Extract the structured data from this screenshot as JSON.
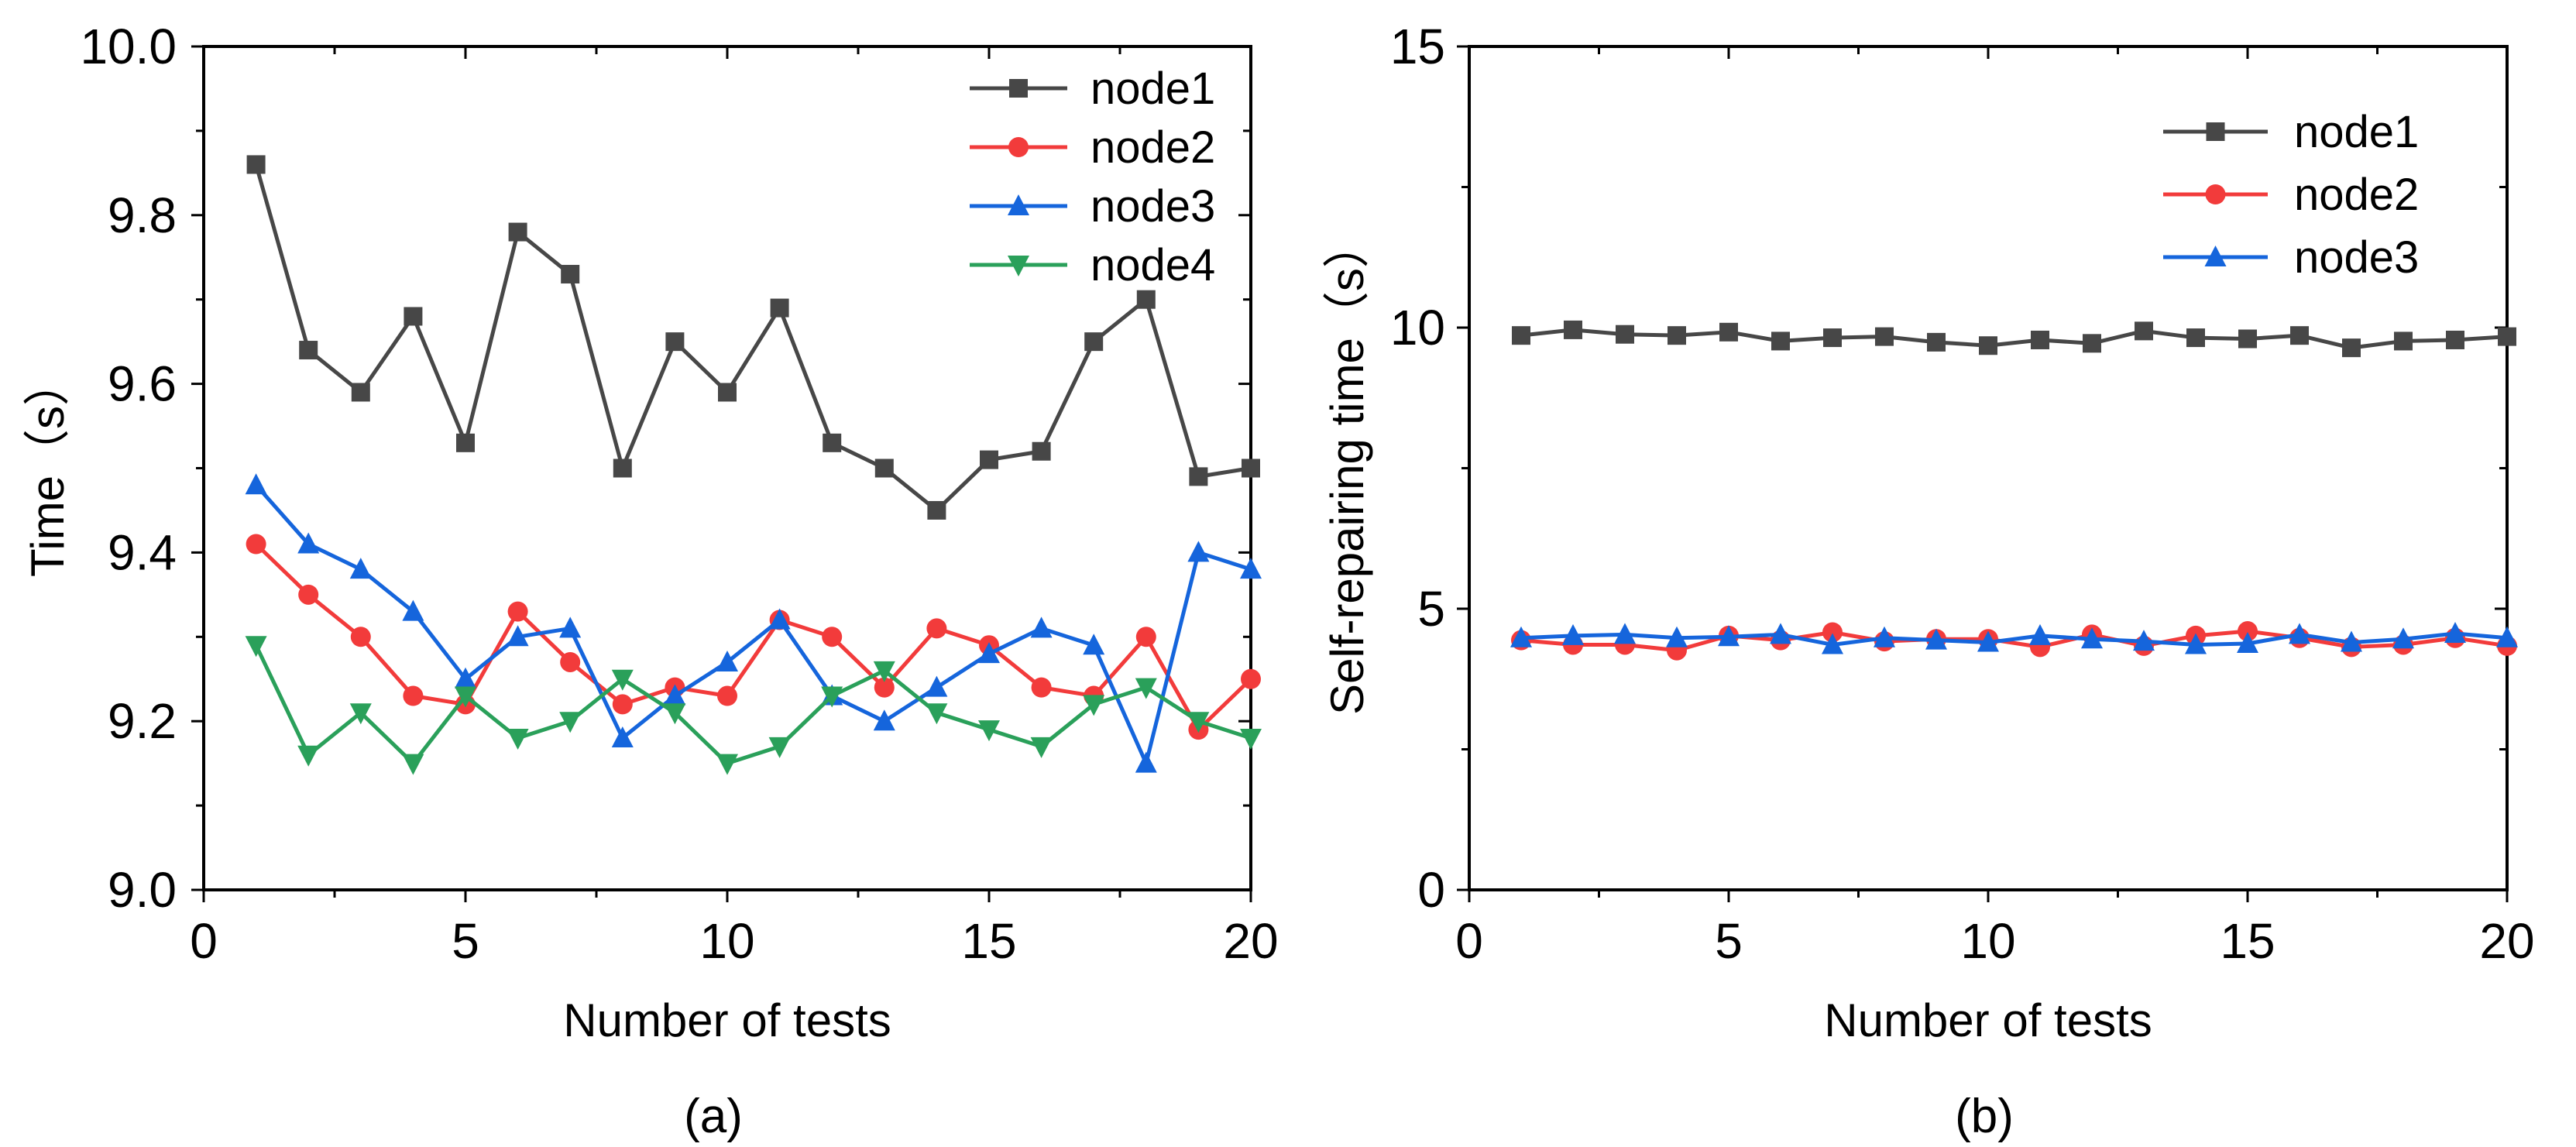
{
  "chart_data": [
    {
      "type": "line",
      "panel_label": "(a)",
      "xlabel": "Number of tests",
      "ylabel": "Time（s）",
      "xlim": [
        0,
        20
      ],
      "ylim": [
        9.0,
        10.0
      ],
      "xticks": [
        0,
        5,
        10,
        15,
        20
      ],
      "xtick_labels": [
        "0",
        "5",
        "10",
        "15",
        "20"
      ],
      "yticks": [
        9.0,
        9.2,
        9.4,
        9.6,
        9.8,
        10.0
      ],
      "ytick_labels": [
        "9.0",
        "9.2",
        "9.4",
        "9.6",
        "9.8",
        "10.0"
      ],
      "xminor": 2.5,
      "yminor": 0.1,
      "legend_position": "top-right",
      "x": [
        1,
        2,
        3,
        4,
        5,
        6,
        7,
        8,
        9,
        10,
        11,
        12,
        13,
        14,
        15,
        16,
        17,
        18,
        19,
        20
      ],
      "series": [
        {
          "name": "node1",
          "color": "#474747",
          "marker": "square",
          "values": [
            9.86,
            9.64,
            9.59,
            9.68,
            9.53,
            9.78,
            9.73,
            9.5,
            9.65,
            9.59,
            9.69,
            9.53,
            9.5,
            9.45,
            9.51,
            9.52,
            9.65,
            9.7,
            9.49,
            9.5
          ]
        },
        {
          "name": "node2",
          "color": "#f23b3b",
          "marker": "circle",
          "values": [
            9.41,
            9.35,
            9.3,
            9.23,
            9.22,
            9.33,
            9.27,
            9.22,
            9.24,
            9.23,
            9.32,
            9.3,
            9.24,
            9.31,
            9.29,
            9.24,
            9.23,
            9.3,
            9.19,
            9.25
          ]
        },
        {
          "name": "node3",
          "color": "#1565dc",
          "marker": "triangle-up",
          "values": [
            9.48,
            9.41,
            9.38,
            9.33,
            9.25,
            9.3,
            9.31,
            9.18,
            9.23,
            9.27,
            9.32,
            9.23,
            9.2,
            9.24,
            9.28,
            9.31,
            9.29,
            9.15,
            9.4,
            9.38
          ]
        },
        {
          "name": "node4",
          "color": "#2aa05a",
          "marker": "triangle-down",
          "values": [
            9.29,
            9.16,
            9.21,
            9.15,
            9.23,
            9.18,
            9.2,
            9.25,
            9.21,
            9.15,
            9.17,
            9.23,
            9.26,
            9.21,
            9.19,
            9.17,
            9.22,
            9.24,
            9.2,
            9.18
          ]
        }
      ]
    },
    {
      "type": "line",
      "panel_label": "(b)",
      "xlabel": "Number of tests",
      "ylabel": "Self-repairing time（s）",
      "xlim": [
        0,
        20
      ],
      "ylim": [
        0,
        15
      ],
      "xticks": [
        0,
        5,
        10,
        15,
        20
      ],
      "xtick_labels": [
        "0",
        "5",
        "10",
        "15",
        "20"
      ],
      "yticks": [
        0,
        5,
        10,
        15
      ],
      "ytick_labels": [
        "0",
        "5",
        "10",
        "15"
      ],
      "xminor": 2.5,
      "yminor": 2.5,
      "legend_position": "top-right",
      "x": [
        1,
        2,
        3,
        4,
        5,
        6,
        7,
        8,
        9,
        10,
        11,
        12,
        13,
        14,
        15,
        16,
        17,
        18,
        19,
        20
      ],
      "series": [
        {
          "name": "node1",
          "color": "#474747",
          "marker": "square",
          "values": [
            9.86,
            9.96,
            9.88,
            9.86,
            9.92,
            9.76,
            9.82,
            9.84,
            9.74,
            9.68,
            9.78,
            9.72,
            9.94,
            9.82,
            9.8,
            9.86,
            9.64,
            9.76,
            9.78,
            9.84
          ]
        },
        {
          "name": "node2",
          "color": "#f23b3b",
          "marker": "circle",
          "values": [
            4.44,
            4.36,
            4.36,
            4.26,
            4.52,
            4.44,
            4.58,
            4.42,
            4.46,
            4.46,
            4.32,
            4.54,
            4.34,
            4.52,
            4.6,
            4.48,
            4.32,
            4.36,
            4.48,
            4.34
          ]
        },
        {
          "name": "node3",
          "color": "#1565dc",
          "marker": "triangle-up",
          "values": [
            4.48,
            4.52,
            4.54,
            4.48,
            4.5,
            4.54,
            4.36,
            4.48,
            4.44,
            4.4,
            4.52,
            4.46,
            4.42,
            4.36,
            4.38,
            4.54,
            4.4,
            4.46,
            4.56,
            4.48
          ]
        }
      ]
    }
  ]
}
